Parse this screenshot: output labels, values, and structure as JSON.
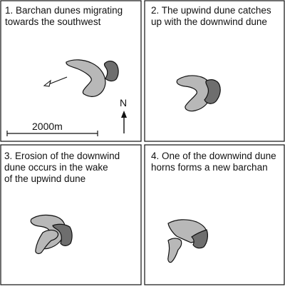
{
  "panels": [
    {
      "caption_lines": [
        "1. Barchan dunes migrating",
        "towards the southwest"
      ]
    },
    {
      "caption_lines": [
        "2. The upwind dune catches",
        "up with the downwind dune"
      ]
    },
    {
      "caption_lines": [
        "3. Erosion of the downwind",
        "dune occurs in the wake",
        "of the upwind dune"
      ]
    },
    {
      "caption_lines": [
        "4. One of the downwind dune",
        "horns forms a new barchan"
      ]
    }
  ],
  "scale_bar": {
    "label": "2000m"
  },
  "north_arrow": {
    "label": "N"
  },
  "colors": {
    "upwind_dune": "#b8b8b8",
    "downwind_dune": "#6e6e6e",
    "outline": "#111111"
  }
}
